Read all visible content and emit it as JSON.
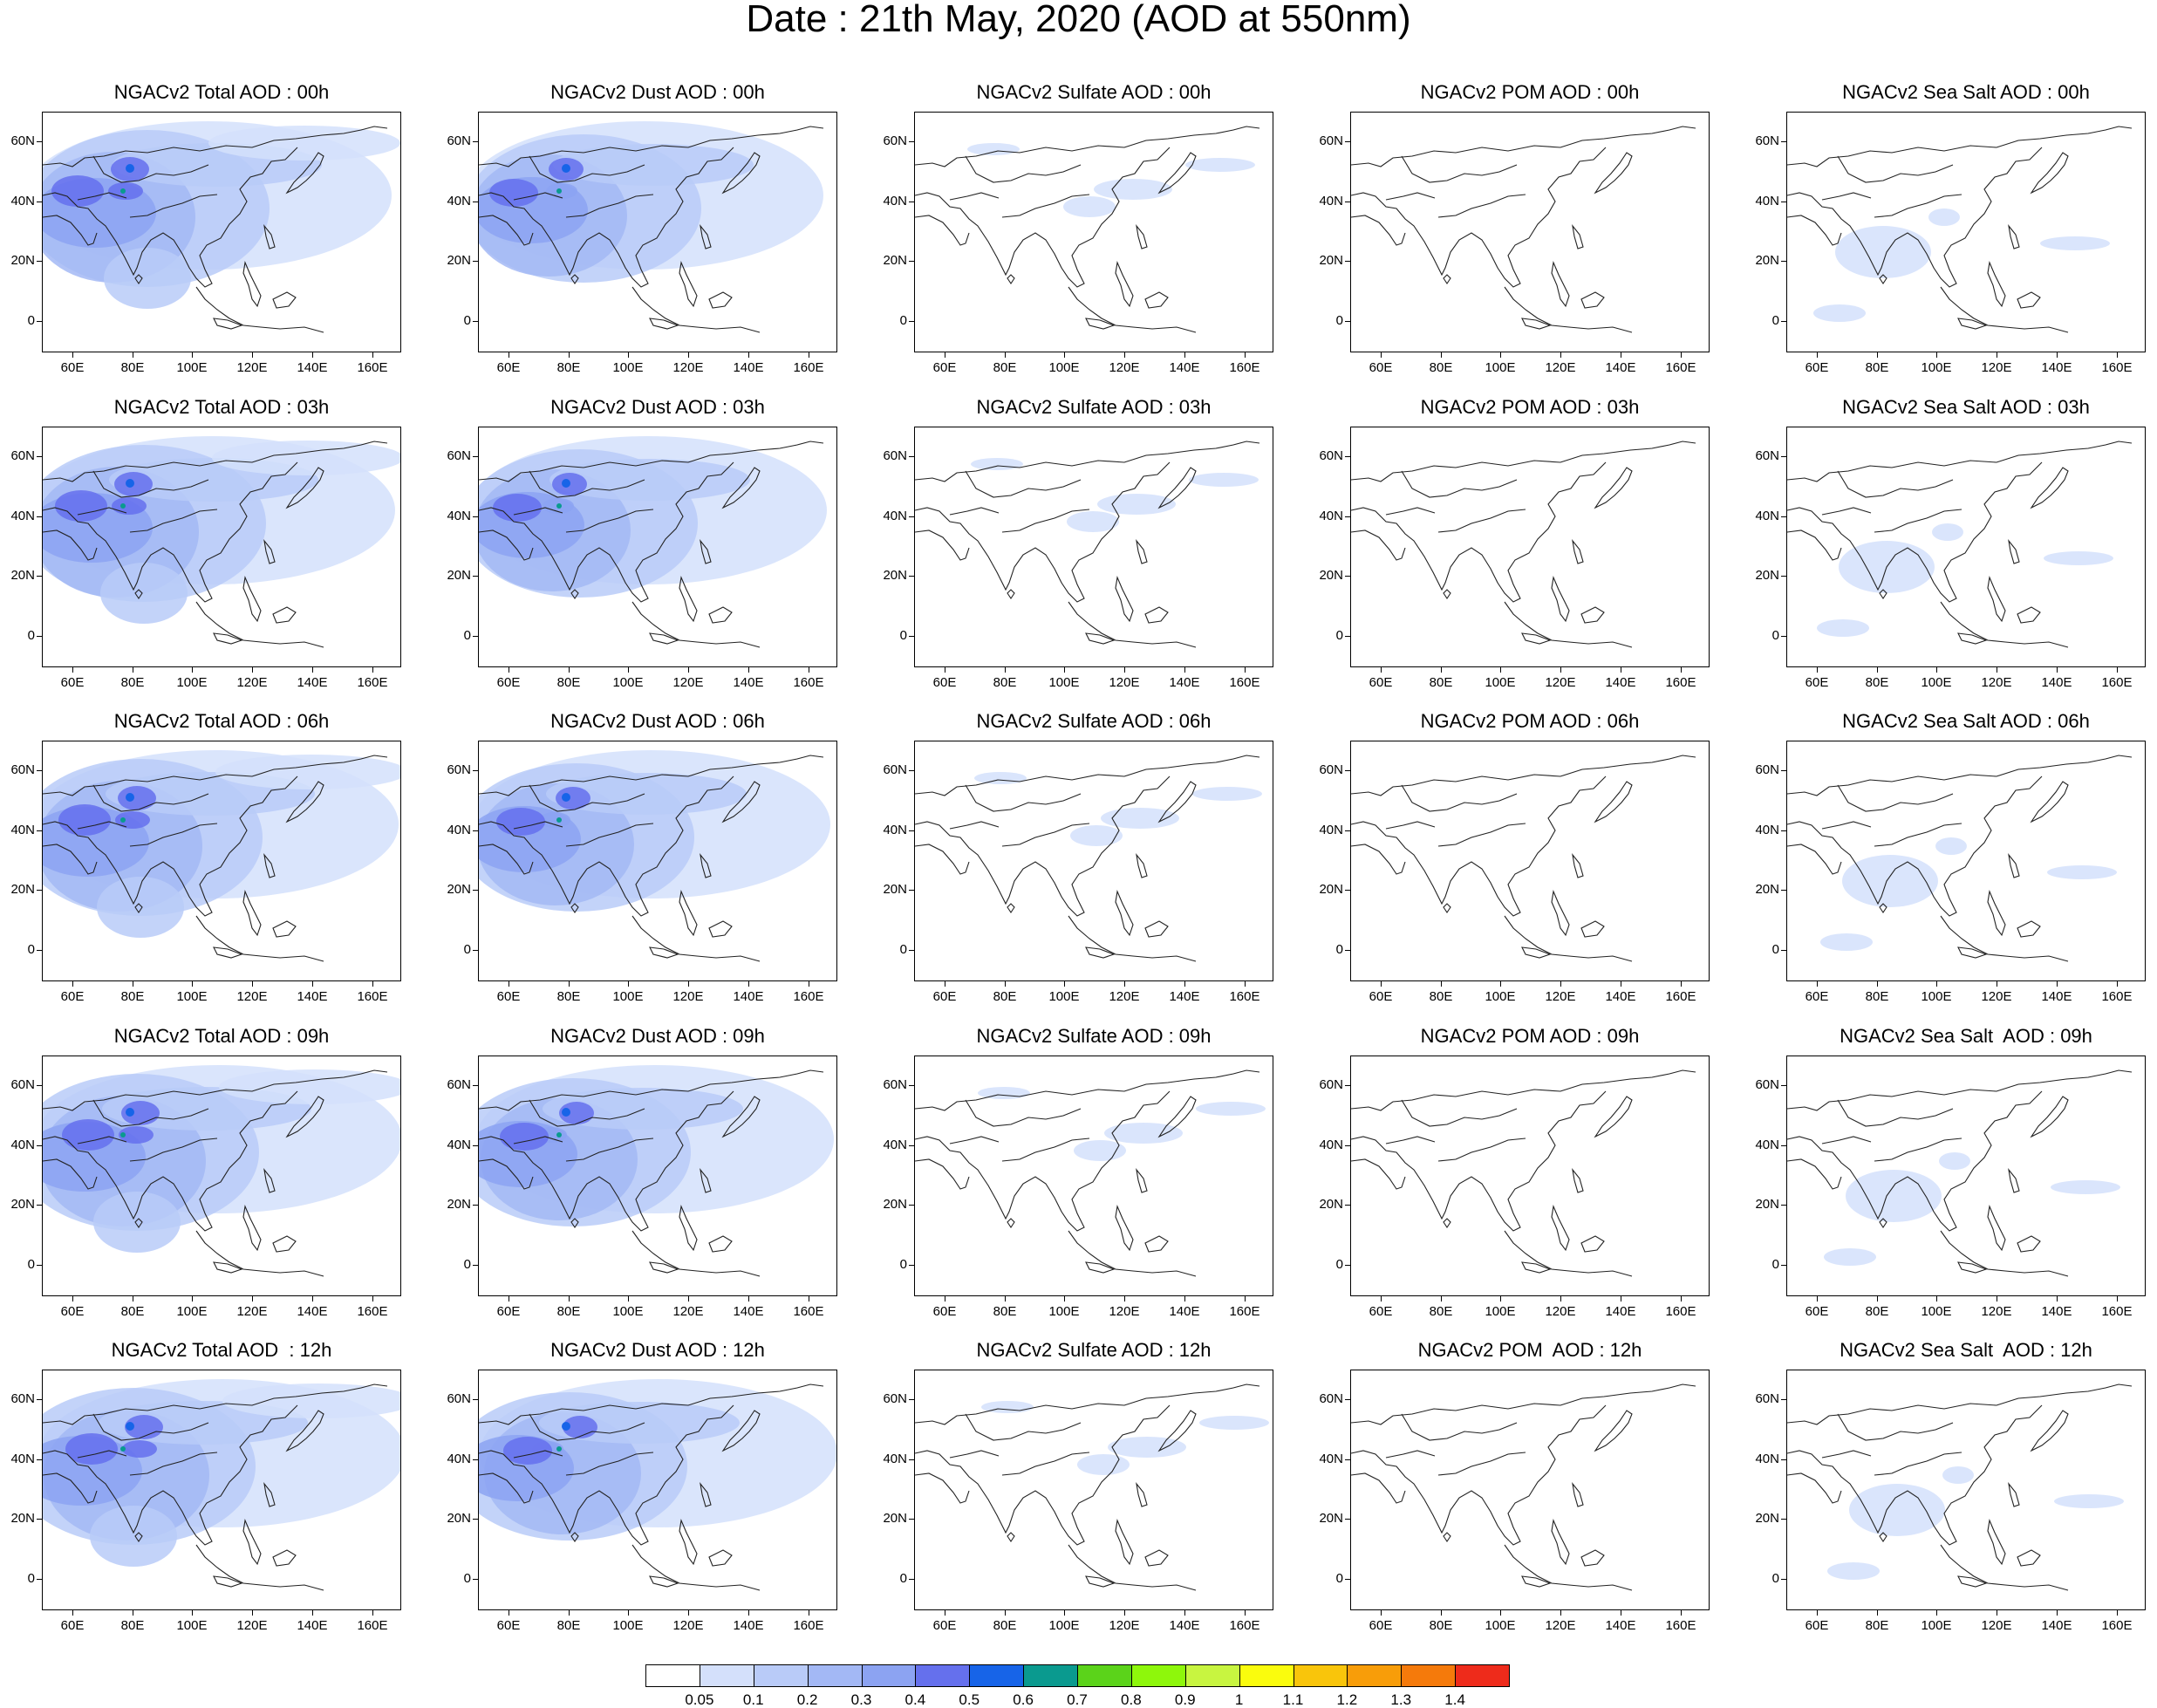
{
  "title": "Date : 21th May, 2020 (AOD at 550nm)",
  "lon_labels": [
    "60E",
    "80E",
    "100E",
    "120E",
    "140E",
    "160E"
  ],
  "lat_labels": [
    "60N",
    "40N",
    "20N",
    "0"
  ],
  "panels": [
    [
      "NGACv2 Total AOD : 00h",
      "NGACv2 Dust AOD : 00h",
      "NGACv2 Sulfate AOD : 00h",
      "NGACv2 POM AOD : 00h",
      "NGACv2 Sea Salt AOD : 00h"
    ],
    [
      "NGACv2 Total AOD : 03h",
      "NGACv2 Dust AOD : 03h",
      "NGACv2 Sulfate AOD : 03h",
      "NGACv2 POM AOD : 03h",
      "NGACv2 Sea Salt AOD : 03h"
    ],
    [
      "NGACv2 Total AOD : 06h",
      "NGACv2 Dust AOD : 06h",
      "NGACv2 Sulfate AOD : 06h",
      "NGACv2 POM AOD : 06h",
      "NGACv2 Sea Salt AOD : 06h"
    ],
    [
      "NGACv2 Total AOD : 09h",
      "NGACv2 Dust AOD : 09h",
      "NGACv2 Sulfate AOD : 09h",
      "NGACv2 POM AOD : 09h",
      "NGACv2 Sea Salt  AOD : 09h"
    ],
    [
      "NGACv2 Total AOD  : 12h",
      "NGACv2 Dust AOD : 12h",
      "NGACv2 Sulfate AOD : 12h",
      "NGACv2 POM  AOD : 12h",
      "NGACv2 Sea Salt  AOD : 12h"
    ]
  ],
  "colorbar": {
    "levels": [
      "0.05",
      "0.1",
      "0.2",
      "0.3",
      "0.4",
      "0.5",
      "0.6",
      "0.7",
      "0.8",
      "0.9",
      "1",
      "1.1",
      "1.2",
      "1.3",
      "1.4"
    ],
    "colors": [
      "#ffffff",
      "#d4e0fb",
      "#b9cbf8",
      "#a3b8f5",
      "#8ca3f2",
      "#6570ed",
      "#1764e8",
      "#0a9a8f",
      "#5bd31a",
      "#8ef70b",
      "#c8f540",
      "#fafc0d",
      "#f9c50b",
      "#f89d09",
      "#f57a0b",
      "#ee2b1b"
    ]
  }
}
